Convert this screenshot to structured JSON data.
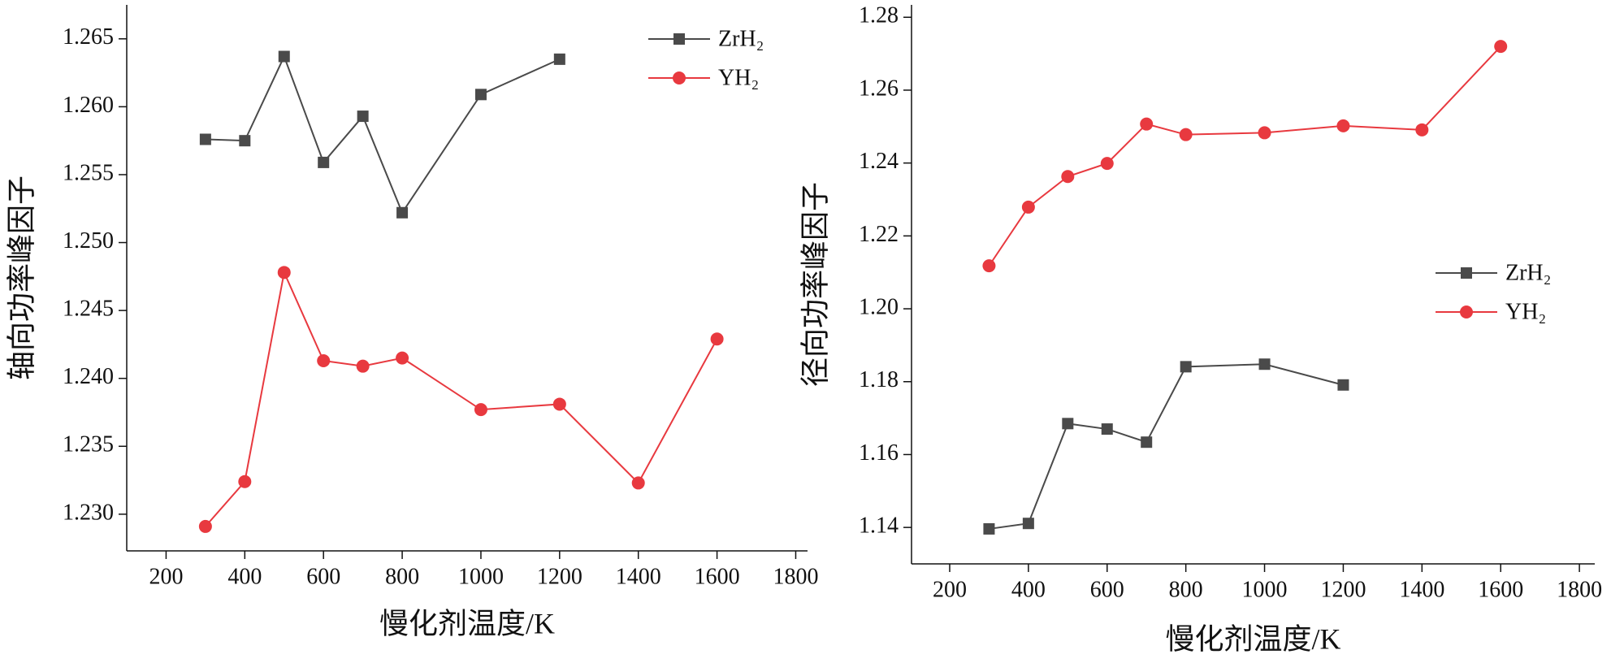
{
  "chart_data": [
    {
      "type": "line",
      "x_label": "慢化剂温度/K",
      "y_label": "轴向功率峰因子",
      "xlim": [
        100,
        1830
      ],
      "xticks": [
        200,
        400,
        600,
        800,
        1000,
        1200,
        1400,
        1600,
        1800
      ],
      "ylim": [
        1.2273,
        1.2675
      ],
      "yticks": [
        {
          "value": 1.23,
          "label": "1.230"
        },
        1.235,
        {
          "value": 1.24,
          "label": "1.240"
        },
        1.245,
        {
          "value": 1.25,
          "label": "1.250"
        },
        1.255,
        {
          "value": 1.26,
          "label": "1.260"
        },
        1.265
      ],
      "legend": "upper right",
      "series": [
        {
          "name": "ZrH₂",
          "color": "#4a4a4a",
          "marker": "square",
          "x": [
            300,
            400,
            500,
            600,
            700,
            800,
            1000,
            1200
          ],
          "values": [
            1.2576,
            1.2575,
            1.2637,
            1.2559,
            1.2593,
            1.2522,
            1.2609,
            1.2635
          ]
        },
        {
          "name": "YH₂",
          "color": "#e8393f",
          "marker": "circle",
          "x": [
            300,
            400,
            500,
            600,
            700,
            800,
            1000,
            1200,
            1400,
            1600
          ],
          "values": [
            1.2291,
            1.2324,
            1.2478,
            1.2413,
            1.2409,
            1.2415,
            1.2377,
            1.2381,
            1.2323,
            1.2429
          ]
        }
      ]
    },
    {
      "type": "line",
      "x_label": "慢化剂温度/K",
      "y_label": "径向功率峰因子",
      "xlim": [
        103,
        1839
      ],
      "xticks": [
        200,
        400,
        600,
        800,
        1000,
        1200,
        1400,
        1600,
        1800
      ],
      "ylim": [
        1.13,
        1.2834
      ],
      "yticks": [
        1.14,
        1.16,
        1.18,
        {
          "value": 1.2,
          "label": "1.20"
        },
        1.22,
        1.24,
        1.26,
        1.28
      ],
      "legend": "center right",
      "series": [
        {
          "name": "ZrH₂",
          "color": "#4a4a4a",
          "marker": "square",
          "x": [
            300,
            400,
            500,
            600,
            700,
            800,
            1000,
            1200
          ],
          "values": [
            1.1396,
            1.1411,
            1.1685,
            1.167,
            1.1634,
            1.1841,
            1.1848,
            1.1791
          ]
        },
        {
          "name": "YH₂",
          "color": "#e8393f",
          "marker": "circle",
          "x": [
            300,
            400,
            500,
            600,
            700,
            800,
            1000,
            1200,
            1400,
            1600
          ],
          "values": [
            1.2118,
            1.2279,
            1.2363,
            1.2399,
            1.2507,
            1.2478,
            1.2483,
            1.2502,
            1.2491,
            1.272
          ]
        }
      ]
    }
  ]
}
